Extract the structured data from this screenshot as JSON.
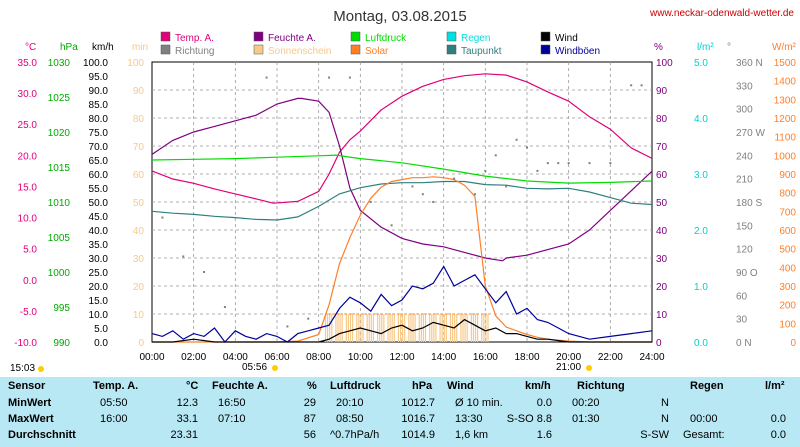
{
  "header": {
    "date": "Montag, 03.08.2015",
    "site": "www.neckar-odenwald-wetter.de"
  },
  "colors": {
    "temp": "#e0007a",
    "humidity": "#800080",
    "pressure": "#00dd00",
    "rain": "#00e0e0",
    "wind": "#000000",
    "direction": "#808080",
    "sunshine": "#f7c98a",
    "solar": "#ff7f27",
    "dewpoint": "#2f7f7f",
    "gust": "#000099",
    "grid": "#999999",
    "table_bg": "#b8e8f4"
  },
  "legend": [
    {
      "label": "Temp. A.",
      "color": "#e0007a"
    },
    {
      "label": "Feuchte A.",
      "color": "#800080"
    },
    {
      "label": "Luftdruck",
      "color": "#00dd00"
    },
    {
      "label": "Regen",
      "color": "#00e0e0"
    },
    {
      "label": "Wind",
      "color": "#000000"
    },
    {
      "label": "Richtung",
      "color": "#808080"
    },
    {
      "label": "Sonnenschein",
      "color": "#f7c98a"
    },
    {
      "label": "Solar",
      "color": "#ff7f27"
    },
    {
      "label": "Taupunkt",
      "color": "#2f7f7f"
    },
    {
      "label": "Windböen",
      "color": "#000099"
    }
  ],
  "chart_data": {
    "type": "line",
    "x_unit": "hours",
    "xlim": [
      0,
      24
    ],
    "x_ticks": [
      "00:00",
      "02:00",
      "04:00",
      "06:00",
      "08:00",
      "10:00",
      "12:00",
      "14:00",
      "16:00",
      "18:00",
      "20:00",
      "22:00",
      "24:00"
    ],
    "sunrise": "05:56",
    "sunset": "21:00",
    "daylength": "15:03",
    "grid": true,
    "axes": [
      {
        "unit": "°C",
        "min": -10,
        "max": 35,
        "ticks": [
          "35.0",
          "30.0",
          "25.0",
          "20.0",
          "15.0",
          "10.0",
          "5.0",
          "0.0",
          "-5.0",
          "-10.0"
        ],
        "color": "#e0007a"
      },
      {
        "unit": "hPa",
        "min": 990,
        "max": 1030,
        "ticks": [
          "1030",
          "1025",
          "1020",
          "1015",
          "1010",
          "1005",
          "1000",
          "995",
          "990"
        ],
        "color": "#00aa00"
      },
      {
        "unit": "km/h",
        "min": 0,
        "max": 100,
        "ticks": [
          "100.0",
          "95.0",
          "90.0",
          "85.0",
          "80.0",
          "75.0",
          "70.0",
          "65.0",
          "60.0",
          "55.0",
          "50.0",
          "45.0",
          "40.0",
          "35.0",
          "30.0",
          "25.0",
          "20.0",
          "15.0",
          "10.0",
          "5.0",
          "0.0"
        ],
        "color": "#000000"
      },
      {
        "unit": "min",
        "min": 0,
        "max": 100,
        "ticks": [
          "100",
          "90",
          "80",
          "70",
          "60",
          "50",
          "40",
          "30",
          "20",
          "10",
          "0"
        ],
        "color": "#f7c98a"
      },
      {
        "unit": "%",
        "min": 0,
        "max": 100,
        "ticks": [
          "100",
          "90",
          "80",
          "70",
          "60",
          "50",
          "40",
          "30",
          "20",
          "10",
          "0"
        ],
        "color": "#800080"
      },
      {
        "unit": "l/m²",
        "min": 0,
        "max": 5,
        "ticks": [
          "5.0",
          "4.0",
          "3.0",
          "2.0",
          "1.0",
          "0.0"
        ],
        "color": "#00d0d0"
      },
      {
        "unit": "°",
        "min": 0,
        "max": 360,
        "ticks": [
          "360 N",
          "330",
          "300",
          "270 W",
          "240",
          "210",
          "180 S",
          "150",
          "120",
          "90 O",
          "60",
          "30",
          "0 N"
        ],
        "color": "#808080"
      },
      {
        "unit": "W/m²",
        "min": 0,
        "max": 1500,
        "ticks": [
          "1500",
          "1400",
          "1300",
          "1200",
          "1100",
          "1000",
          "900",
          "800",
          "700",
          "600",
          "500",
          "400",
          "300",
          "200",
          "100",
          "0"
        ],
        "color": "#ff7f27"
      }
    ],
    "series": [
      {
        "name": "Temp. A.",
        "axis": "°C",
        "x": [
          0,
          1,
          2,
          3,
          4,
          5,
          5.83,
          7,
          8,
          8.5,
          9,
          9.5,
          10,
          11,
          12,
          13,
          14,
          15,
          16,
          17,
          18,
          19,
          20,
          21,
          22,
          23,
          24
        ],
        "y": [
          17.5,
          16.2,
          15.5,
          14.6,
          13.8,
          13.0,
          12.3,
          12.6,
          14.2,
          17.0,
          20.5,
          22.5,
          23.9,
          27.3,
          29.5,
          31.1,
          32.2,
          32.8,
          33.1,
          32.9,
          31.8,
          30.2,
          28.7,
          26.2,
          24.2,
          21.2,
          19.5
        ]
      },
      {
        "name": "Feuchte A.",
        "axis": "%",
        "x": [
          0,
          1,
          2,
          3,
          4,
          5,
          6,
          7,
          7.17,
          8,
          8.5,
          9,
          9.5,
          10,
          11,
          12,
          13,
          14,
          15,
          16,
          16.83,
          17,
          18,
          19,
          20,
          21,
          22,
          23,
          24
        ],
        "y": [
          67,
          72,
          75,
          77,
          79,
          81,
          85,
          87,
          87,
          86,
          82,
          70,
          55,
          47,
          41,
          37,
          35,
          34,
          32,
          30,
          29,
          30,
          31,
          33,
          35,
          40,
          47,
          54,
          61
        ]
      },
      {
        "name": "Luftdruck",
        "axis": "hPa",
        "x": [
          0,
          2,
          4,
          6,
          8,
          8.83,
          10,
          12,
          14,
          16,
          18,
          20,
          22,
          24
        ],
        "y": [
          1016.0,
          1016.1,
          1016.2,
          1016.4,
          1016.6,
          1016.7,
          1016.2,
          1015.6,
          1014.7,
          1013.7,
          1013.0,
          1012.7,
          1012.8,
          1013.0
        ]
      },
      {
        "name": "Taupunkt",
        "axis": "°C",
        "x": [
          0,
          1,
          2,
          3,
          4,
          5,
          6,
          7,
          8,
          9,
          10,
          11,
          12,
          13,
          14,
          15,
          16,
          17,
          18,
          19,
          20,
          21,
          22,
          23,
          24
        ],
        "y": [
          11.0,
          10.7,
          10.5,
          10.2,
          10.0,
          9.7,
          9.6,
          10.1,
          11.8,
          13.8,
          14.8,
          15.4,
          15.6,
          15.6,
          15.8,
          15.8,
          15.3,
          15.2,
          14.7,
          14.6,
          14.7,
          14.1,
          13.2,
          12.3,
          12.1
        ]
      },
      {
        "name": "Solar",
        "axis": "W/m²",
        "x": [
          0,
          5.9,
          7,
          8,
          8.5,
          9,
          9.5,
          10,
          10.5,
          11,
          11.5,
          12,
          12.5,
          13,
          13.5,
          14,
          14.5,
          15,
          15.5,
          16,
          16.5,
          17,
          17.5,
          18,
          18.5,
          19,
          20,
          21,
          24
        ],
        "y": [
          0,
          0,
          5,
          40,
          200,
          420,
          560,
          680,
          770,
          830,
          860,
          870,
          880,
          880,
          885,
          880,
          870,
          840,
          780,
          300,
          140,
          80,
          60,
          40,
          25,
          15,
          5,
          0,
          0
        ]
      },
      {
        "name": "Wind",
        "axis": "km/h",
        "x": [
          0,
          1,
          2,
          3,
          4,
          5,
          6,
          7,
          8,
          8.5,
          9,
          9.5,
          10,
          10.5,
          11,
          11.5,
          12,
          12.5,
          13,
          13.5,
          14,
          14.5,
          15,
          15.5,
          16,
          16.5,
          17,
          17.5,
          18,
          18.5,
          19,
          20,
          21,
          22,
          23,
          24
        ],
        "y": [
          0,
          0,
          1,
          0,
          0,
          0,
          0,
          0,
          0,
          1,
          3,
          4,
          5,
          4,
          3,
          5,
          6,
          4,
          5,
          7,
          6,
          5,
          8,
          6,
          4,
          5,
          3,
          3,
          2,
          1,
          1,
          0,
          0,
          0,
          0,
          0
        ]
      },
      {
        "name": "Windböen",
        "axis": "km/h",
        "x": [
          0,
          0.5,
          1,
          1.5,
          2,
          2.5,
          3,
          3.5,
          4,
          4.5,
          5,
          5.5,
          6,
          6.5,
          7,
          7.5,
          8,
          8.5,
          9,
          9.5,
          10,
          10.5,
          11,
          11.5,
          12,
          12.5,
          13,
          13.5,
          14,
          14.5,
          15,
          15.5,
          16,
          16.5,
          17,
          17.5,
          18,
          18.5,
          19,
          19.5,
          20,
          21,
          22,
          23,
          24
        ],
        "y": [
          3,
          2,
          4,
          1,
          3,
          2,
          5,
          0,
          4,
          2,
          1,
          3,
          2,
          0,
          3,
          4,
          5,
          6,
          12,
          16,
          14,
          11,
          17,
          13,
          15,
          20,
          19,
          21,
          27,
          20,
          22,
          24,
          19,
          14,
          18,
          10,
          12,
          8,
          7,
          5,
          3,
          1,
          2,
          3,
          4
        ]
      }
    ],
    "direction_points": {
      "axis": "°",
      "x": [
        0.5,
        1.5,
        2.5,
        3.5,
        5.5,
        6.5,
        7.5,
        8.5,
        9.5,
        10.5,
        11.5,
        12.5,
        13,
        13.5,
        14.5,
        15.5,
        16,
        16.5,
        17,
        17.5,
        18,
        18.5,
        19,
        19.5,
        20,
        21,
        22,
        23,
        23.5
      ],
      "y": [
        160,
        110,
        90,
        45,
        340,
        20,
        30,
        340,
        340,
        180,
        150,
        200,
        190,
        180,
        210,
        190,
        220,
        240,
        200,
        260,
        250,
        220,
        230,
        230,
        230,
        230,
        230,
        330,
        330
      ]
    },
    "sunshine_minutes": {
      "axis": "min",
      "x": [
        8.5,
        9,
        9.5,
        10,
        10.5,
        11,
        11.5,
        12,
        12.5,
        13,
        13.5,
        14,
        14.5,
        15,
        15.5,
        16
      ],
      "y": [
        10,
        10,
        10,
        10,
        10,
        10,
        10,
        10,
        10,
        10,
        10,
        10,
        10,
        10,
        10,
        10
      ]
    }
  },
  "table": {
    "headers": {
      "sensor": "Sensor",
      "temp": "Temp. A.",
      "temp_unit": "°C",
      "hum": "Feuchte A.",
      "hum_unit": "%",
      "press": "Luftdruck",
      "press_unit": "hPa",
      "wind": "Wind",
      "wind_unit": "km/h",
      "dir": "Richtung",
      "rain": "Regen",
      "rain_unit": "l/m²"
    },
    "rows": [
      {
        "label": "MinWert",
        "temp_t": "05:50",
        "temp_v": "12.3",
        "hum_t": "16:50",
        "hum_v": "29",
        "press_t": "20:10",
        "press_v": "1012.7",
        "wind_t": "Ø 10 min.",
        "wind_v": "0.0",
        "dir_t": "00:20",
        "dir_v": "N",
        "rain_t": "",
        "rain_v": ""
      },
      {
        "label": "MaxWert",
        "temp_t": "16:00",
        "temp_v": "33.1",
        "hum_t": "07:10",
        "hum_v": "87",
        "press_t": "08:50",
        "press_v": "1016.7",
        "wind_t": "13:30",
        "wind_m": "S-SO 8.8",
        "wind_v": "",
        "dir_t": "01:30",
        "dir_v": "N",
        "rain_t": "00:00",
        "rain_v": "0.0"
      },
      {
        "label": "Durchschnitt",
        "temp_t": "",
        "temp_v": "23.31",
        "hum_t": "",
        "hum_v": "56",
        "press_t": "^0.7hPa/h",
        "press_v": "1014.9",
        "wind_t": "1,6 km",
        "wind_v": "1.6",
        "dir_t": "",
        "dir_v": "S-SW",
        "rain_t": "Gesamt:",
        "rain_v": "0.0"
      }
    ]
  }
}
